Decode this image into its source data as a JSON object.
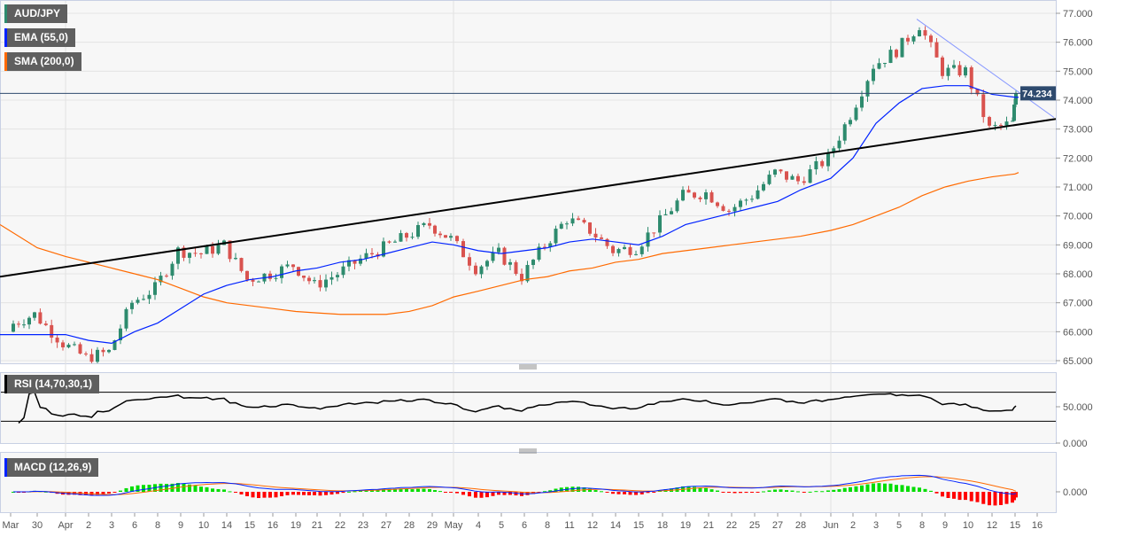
{
  "legend": {
    "symbol": "AUD/JPY",
    "ema": "EMA (55,0)",
    "sma": "SMA (200,0)",
    "rsi": "RSI (14,70,30,1)",
    "macd": "MACD (12,26,9)"
  },
  "colors": {
    "up": "#2e8b6e",
    "down": "#d9534f",
    "ema": "#0022ff",
    "sma": "#ff6a00",
    "trend": "#000000",
    "resistance": "#8899ff",
    "macd_pos": "#00dd00",
    "macd_neg": "#ff0000",
    "price_tag": "#2e4a6e"
  },
  "chart_data": {
    "type": "candlestick",
    "x_labels": [
      "Mar",
      "30",
      "Apr",
      "2",
      "3",
      "6",
      "8",
      "9",
      "10",
      "14",
      "15",
      "16",
      "19",
      "21",
      "22",
      "23",
      "27",
      "28",
      "29",
      "May",
      "4",
      "5",
      "6",
      "8",
      "11",
      "12",
      "14",
      "15",
      "18",
      "19",
      "21",
      "22",
      "25",
      "27",
      "28",
      "Jun",
      "2",
      "3",
      "5",
      "8",
      "9",
      "10",
      "12",
      "15",
      "16"
    ],
    "close": [
      66.2,
      66.6,
      65.6,
      65.1,
      65.3,
      67.0,
      67.5,
      68.8,
      68.7,
      69.0,
      67.8,
      68.0,
      68.3,
      67.6,
      68.0,
      68.5,
      68.9,
      69.3,
      69.7,
      69.2,
      68.2,
      68.7,
      67.9,
      69.0,
      69.9,
      69.5,
      68.8,
      68.9,
      69.8,
      70.7,
      70.8,
      70.2,
      70.7,
      71.5,
      71.2,
      72.0,
      73.5,
      75.2,
      75.7,
      76.6,
      75.0,
      75.0,
      73.0,
      73.2,
      74.234
    ],
    "ema55": [
      65.9,
      65.9,
      65.9,
      65.7,
      65.6,
      66.0,
      66.3,
      66.8,
      67.3,
      67.6,
      67.8,
      67.9,
      68.1,
      68.2,
      68.4,
      68.5,
      68.7,
      68.9,
      69.1,
      69.0,
      68.8,
      68.7,
      68.8,
      68.9,
      69.1,
      69.2,
      69.1,
      69.0,
      69.3,
      69.7,
      69.9,
      70.1,
      70.3,
      70.5,
      70.9,
      71.3,
      72.0,
      73.2,
      73.9,
      74.4,
      74.5,
      74.5,
      74.2,
      74.1,
      74.1
    ],
    "sma200": [
      69.7,
      68.9,
      68.6,
      68.4,
      68.2,
      68.0,
      67.8,
      67.5,
      67.2,
      67.0,
      66.9,
      66.8,
      66.7,
      66.65,
      66.6,
      66.6,
      66.6,
      66.7,
      66.9,
      67.2,
      67.4,
      67.6,
      67.8,
      67.9,
      68.1,
      68.2,
      68.4,
      68.5,
      68.7,
      68.8,
      68.9,
      69.0,
      69.1,
      69.2,
      69.3,
      69.5,
      69.7,
      70.0,
      70.3,
      70.7,
      71.0,
      71.2,
      71.35,
      71.45,
      71.5
    ],
    "last_price": "74.234",
    "y_ticks": [
      "77.000",
      "76.000",
      "75.000",
      "74.000",
      "73.000",
      "72.000",
      "71.000",
      "70.000",
      "69.000",
      "68.000",
      "67.000",
      "66.000",
      "65.000"
    ],
    "ylim": [
      65,
      77
    ],
    "trendline": {
      "from": 67.9,
      "to": 73.35
    },
    "resistance_line": {
      "from": 76.8,
      "to": 73.4
    },
    "rsi": {
      "ticks": [
        "50.000",
        "0.000"
      ],
      "upper": 70,
      "lower": 30
    },
    "macd": {
      "ticks": [
        "0.000"
      ]
    }
  }
}
